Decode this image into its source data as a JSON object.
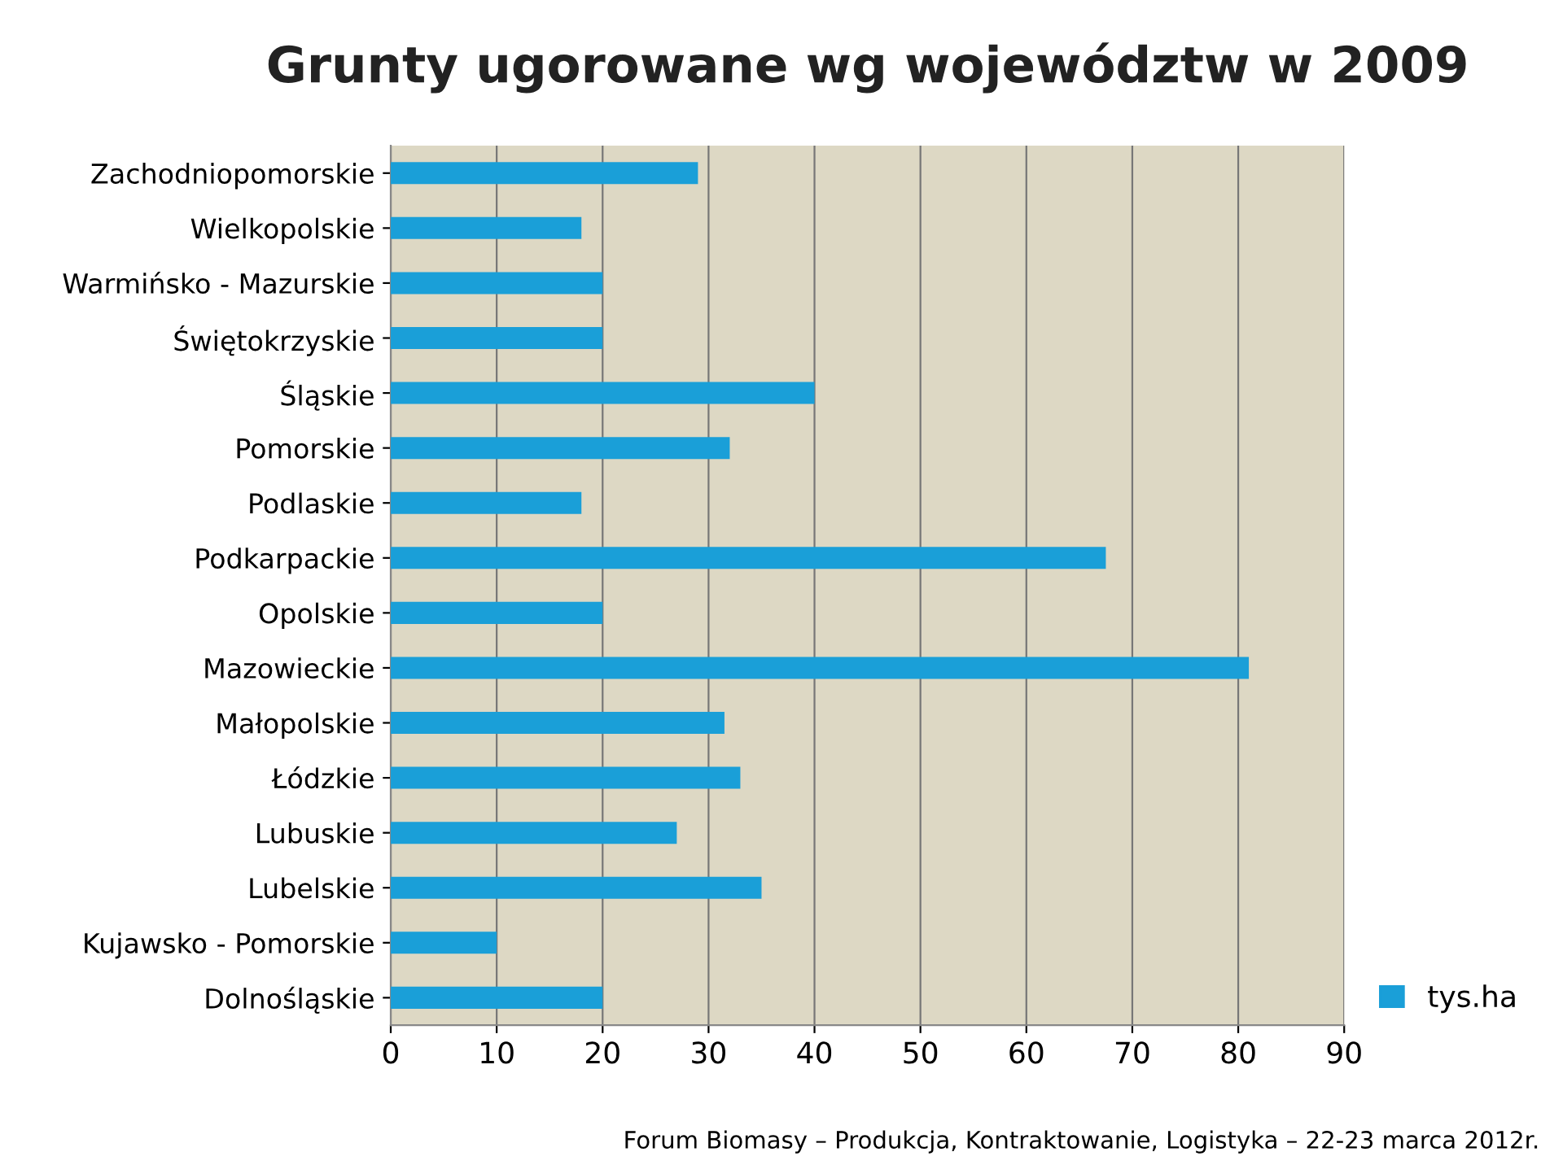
{
  "chart_data": {
    "type": "bar",
    "orientation": "horizontal",
    "title": "Grunty ugorowane wg województw w 2009",
    "categories": [
      "Zachodniopomorskie",
      "Wielkopolskie",
      "Warmińsko - Mazurskie",
      "Świętokrzyskie",
      "Śląskie",
      "Pomorskie",
      "Podlaskie",
      "Podkarpackie",
      "Opolskie",
      "Mazowieckie",
      "Małopolskie",
      "Łódzkie",
      "Lubuskie",
      "Lubelskie",
      "Kujawsko - Pomorskie",
      "Dolnośląskie"
    ],
    "series": [
      {
        "name": "tys.ha",
        "color": "#1a9fd8",
        "values": [
          29,
          18,
          20,
          20,
          40,
          32,
          18,
          67.5,
          20,
          81,
          31.5,
          33,
          27,
          35,
          10,
          20
        ]
      }
    ],
    "xlim": [
      0,
      90
    ],
    "xticks": [
      0,
      10,
      20,
      30,
      40,
      50,
      60,
      70,
      80,
      90
    ],
    "grid": "x",
    "legend": "right",
    "annotations": [
      "Forum Biomasy – Produkcja, Kontraktowanie, Logistyka – 22-23 marca 2012r."
    ]
  }
}
